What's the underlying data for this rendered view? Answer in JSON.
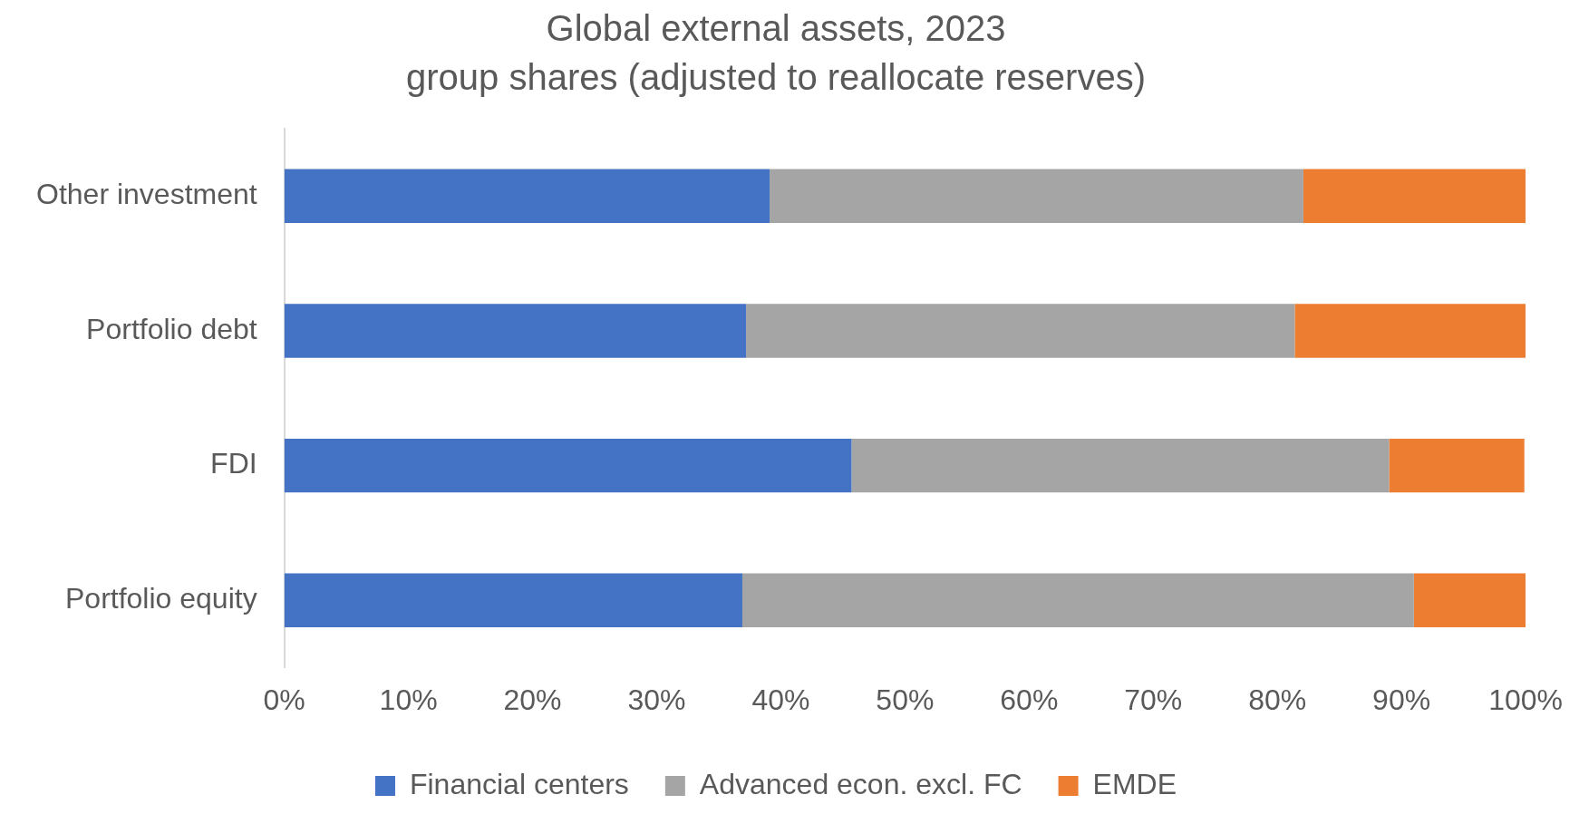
{
  "chart_data": {
    "type": "bar",
    "orientation": "horizontal",
    "stacked": true,
    "title": "Global external assets, 2023",
    "subtitle": "group shares (adjusted to reallocate reserves)",
    "categories": [
      "Other investment",
      "Portfolio debt",
      "FDI",
      "Portfolio equity"
    ],
    "series": [
      {
        "name": "Financial centers",
        "color": "#4472c4",
        "values": [
          39.1,
          37.2,
          45.7,
          36.9
        ]
      },
      {
        "name": "Advanced econ. excl. FC",
        "color": "#a5a5a5",
        "values": [
          43.0,
          44.2,
          43.3,
          54.1
        ]
      },
      {
        "name": "EMDE",
        "color": "#ed7d31",
        "values": [
          17.9,
          18.6,
          10.9,
          9.0
        ]
      }
    ],
    "xlim": [
      0,
      100
    ],
    "xticks": [
      {
        "value": 0,
        "label": "0%"
      },
      {
        "value": 10,
        "label": "10%"
      },
      {
        "value": 20,
        "label": "20%"
      },
      {
        "value": 30,
        "label": "30%"
      },
      {
        "value": 40,
        "label": "40%"
      },
      {
        "value": 50,
        "label": "50%"
      },
      {
        "value": 60,
        "label": "60%"
      },
      {
        "value": 70,
        "label": "70%"
      },
      {
        "value": 80,
        "label": "80%"
      },
      {
        "value": 90,
        "label": "90%"
      },
      {
        "value": 100,
        "label": "100%"
      }
    ],
    "grid": false,
    "legend": "bottom"
  }
}
